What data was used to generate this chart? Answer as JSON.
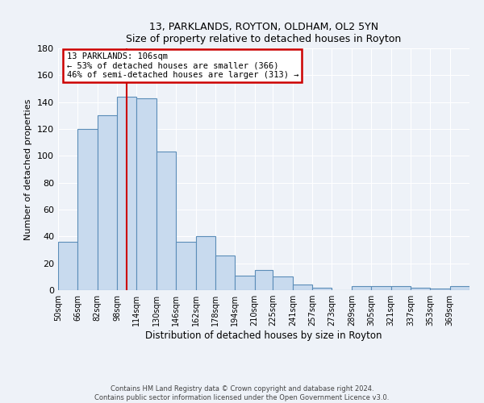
{
  "title": "13, PARKLANDS, ROYTON, OLDHAM, OL2 5YN",
  "subtitle": "Size of property relative to detached houses in Royton",
  "xlabel": "Distribution of detached houses by size in Royton",
  "ylabel": "Number of detached properties",
  "bar_color": "#c8daee",
  "bar_edge_color": "#5b8db8",
  "background_color": "#eef2f8",
  "grid_color": "#ffffff",
  "categories": [
    "50sqm",
    "66sqm",
    "82sqm",
    "98sqm",
    "114sqm",
    "130sqm",
    "146sqm",
    "162sqm",
    "178sqm",
    "194sqm",
    "210sqm",
    "225sqm",
    "241sqm",
    "257sqm",
    "273sqm",
    "289sqm",
    "305sqm",
    "321sqm",
    "337sqm",
    "353sqm",
    "369sqm"
  ],
  "values": [
    36,
    120,
    130,
    144,
    143,
    103,
    36,
    40,
    26,
    11,
    15,
    10,
    4,
    2,
    0,
    3,
    3,
    3,
    2,
    1,
    3
  ],
  "ylim": [
    0,
    180
  ],
  "yticks": [
    0,
    20,
    40,
    60,
    80,
    100,
    120,
    140,
    160,
    180
  ],
  "vline_x": 106,
  "bin_edges": [
    50,
    66,
    82,
    98,
    114,
    130,
    146,
    162,
    178,
    194,
    210,
    225,
    241,
    257,
    273,
    289,
    305,
    321,
    337,
    353,
    369,
    385
  ],
  "annotation_title": "13 PARKLANDS: 106sqm",
  "annotation_line1": "← 53% of detached houses are smaller (366)",
  "annotation_line2": "46% of semi-detached houses are larger (313) →",
  "annotation_box_color": "#ffffff",
  "annotation_box_edge_color": "#cc0000",
  "vline_color": "#cc0000",
  "footnote1": "Contains HM Land Registry data © Crown copyright and database right 2024.",
  "footnote2": "Contains public sector information licensed under the Open Government Licence v3.0."
}
